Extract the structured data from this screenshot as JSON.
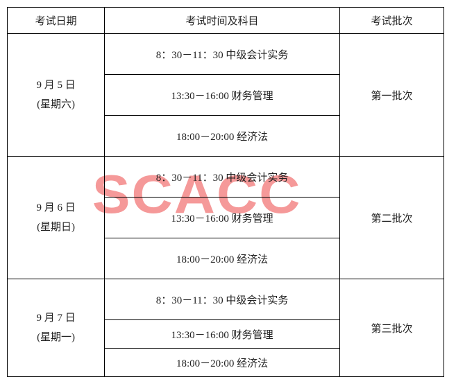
{
  "headers": {
    "date": "考试日期",
    "time": "考试时间及科目",
    "batch": "考试批次"
  },
  "watermark": "SCACC",
  "rows": [
    {
      "date_line1": "9 月 5 日",
      "date_line2": "(星期六)",
      "slots": [
        "8：30－11：30 中级会计实务",
        "13:30－16:00 财务管理",
        "18:00－20:00 经济法"
      ],
      "batch": "第一批次"
    },
    {
      "date_line1": "9 月 6 日",
      "date_line2": "(星期日)",
      "slots": [
        "8：30－11：30 中级会计实务",
        "13:30－16:00 财务管理",
        "18:00－20:00 经济法"
      ],
      "batch": "第二批次"
    },
    {
      "date_line1": "9 月 7 日",
      "date_line2": "(星期一)",
      "slots": [
        "8：30－11：30 中级会计实务",
        "13:30－16:00 财务管理",
        "18:00－20:00 经济法"
      ],
      "batch": "第三批次"
    }
  ]
}
